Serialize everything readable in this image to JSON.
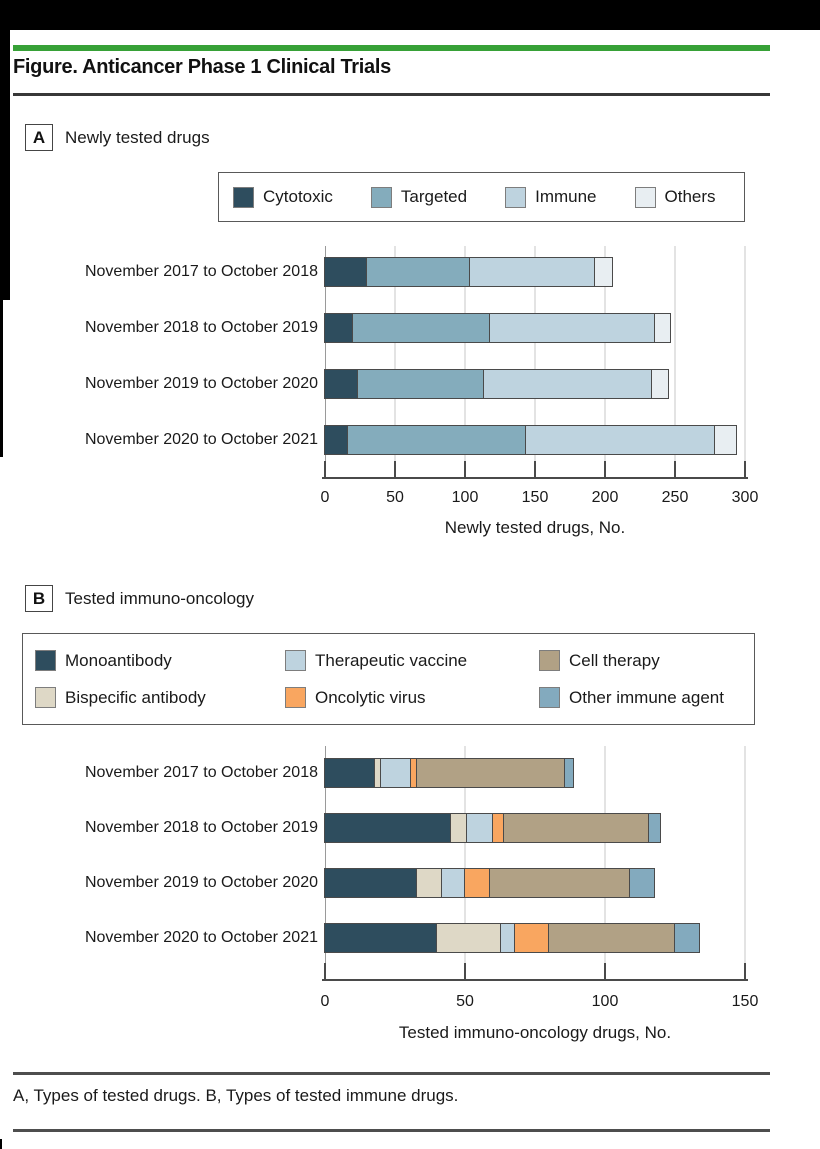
{
  "page": {
    "title": "Figure. Anticancer Phase 1 Clinical Trials",
    "caption": "A, Types of tested drugs. B, Types of tested immune drugs.",
    "accent_green": "#37A137"
  },
  "panels": {
    "a": {
      "tag": "A",
      "heading": "Newly tested drugs"
    },
    "b": {
      "tag": "B",
      "heading": "Tested immuno-oncology"
    }
  },
  "chart_data": [
    {
      "type": "bar",
      "orientation": "horizontal",
      "panel": "A",
      "title": "Newly tested drugs",
      "categories": [
        "November 2017 to October 2018",
        "November 2018 to October 2019",
        "November 2019 to October 2020",
        "November 2020 to October 2021"
      ],
      "series": [
        {
          "name": "Cytotoxic",
          "color": "#2E4D5E",
          "values": [
            30,
            20,
            24,
            17
          ]
        },
        {
          "name": "Targeted",
          "color": "#84ACBC",
          "values": [
            74,
            98,
            90,
            127
          ]
        },
        {
          "name": "Immune",
          "color": "#BED3DF",
          "values": [
            89,
            118,
            120,
            135
          ]
        },
        {
          "name": "Others",
          "color": "#E8EEF2",
          "values": [
            13,
            11,
            12,
            15
          ]
        }
      ],
      "xlabel": "Newly tested drugs, No.",
      "xlim": [
        0,
        300
      ],
      "xticks": [
        0,
        50,
        100,
        150,
        200,
        250,
        300
      ],
      "grid": true,
      "legend_position": "top"
    },
    {
      "type": "bar",
      "orientation": "horizontal",
      "panel": "B",
      "title": "Tested immuno-oncology",
      "categories": [
        "November 2017 to October 2018",
        "November 2018 to October 2019",
        "November 2019 to October 2020",
        "November 2020 to October 2021"
      ],
      "series": [
        {
          "name": "Monoantibody",
          "color": "#2E4D5E",
          "values": [
            18,
            45,
            33,
            40
          ]
        },
        {
          "name": "Bispecific antibody",
          "color": "#DED8C6",
          "values": [
            2,
            6,
            9,
            23
          ]
        },
        {
          "name": "Therapeutic vaccine",
          "color": "#BED3DF",
          "values": [
            11,
            9,
            8,
            5
          ]
        },
        {
          "name": "Oncolytic virus",
          "color": "#F9A660",
          "values": [
            2,
            4,
            9,
            12
          ]
        },
        {
          "name": "Cell therapy",
          "color": "#B1A185",
          "values": [
            53,
            52,
            50,
            45
          ]
        },
        {
          "name": "Other immune agent",
          "color": "#83AABE",
          "values": [
            3,
            4,
            9,
            9
          ]
        }
      ],
      "xlabel": "Tested immuno-oncology drugs, No.",
      "xlim": [
        0,
        150
      ],
      "xticks": [
        0,
        50,
        100,
        150
      ],
      "grid": true,
      "legend_position": "top"
    }
  ]
}
